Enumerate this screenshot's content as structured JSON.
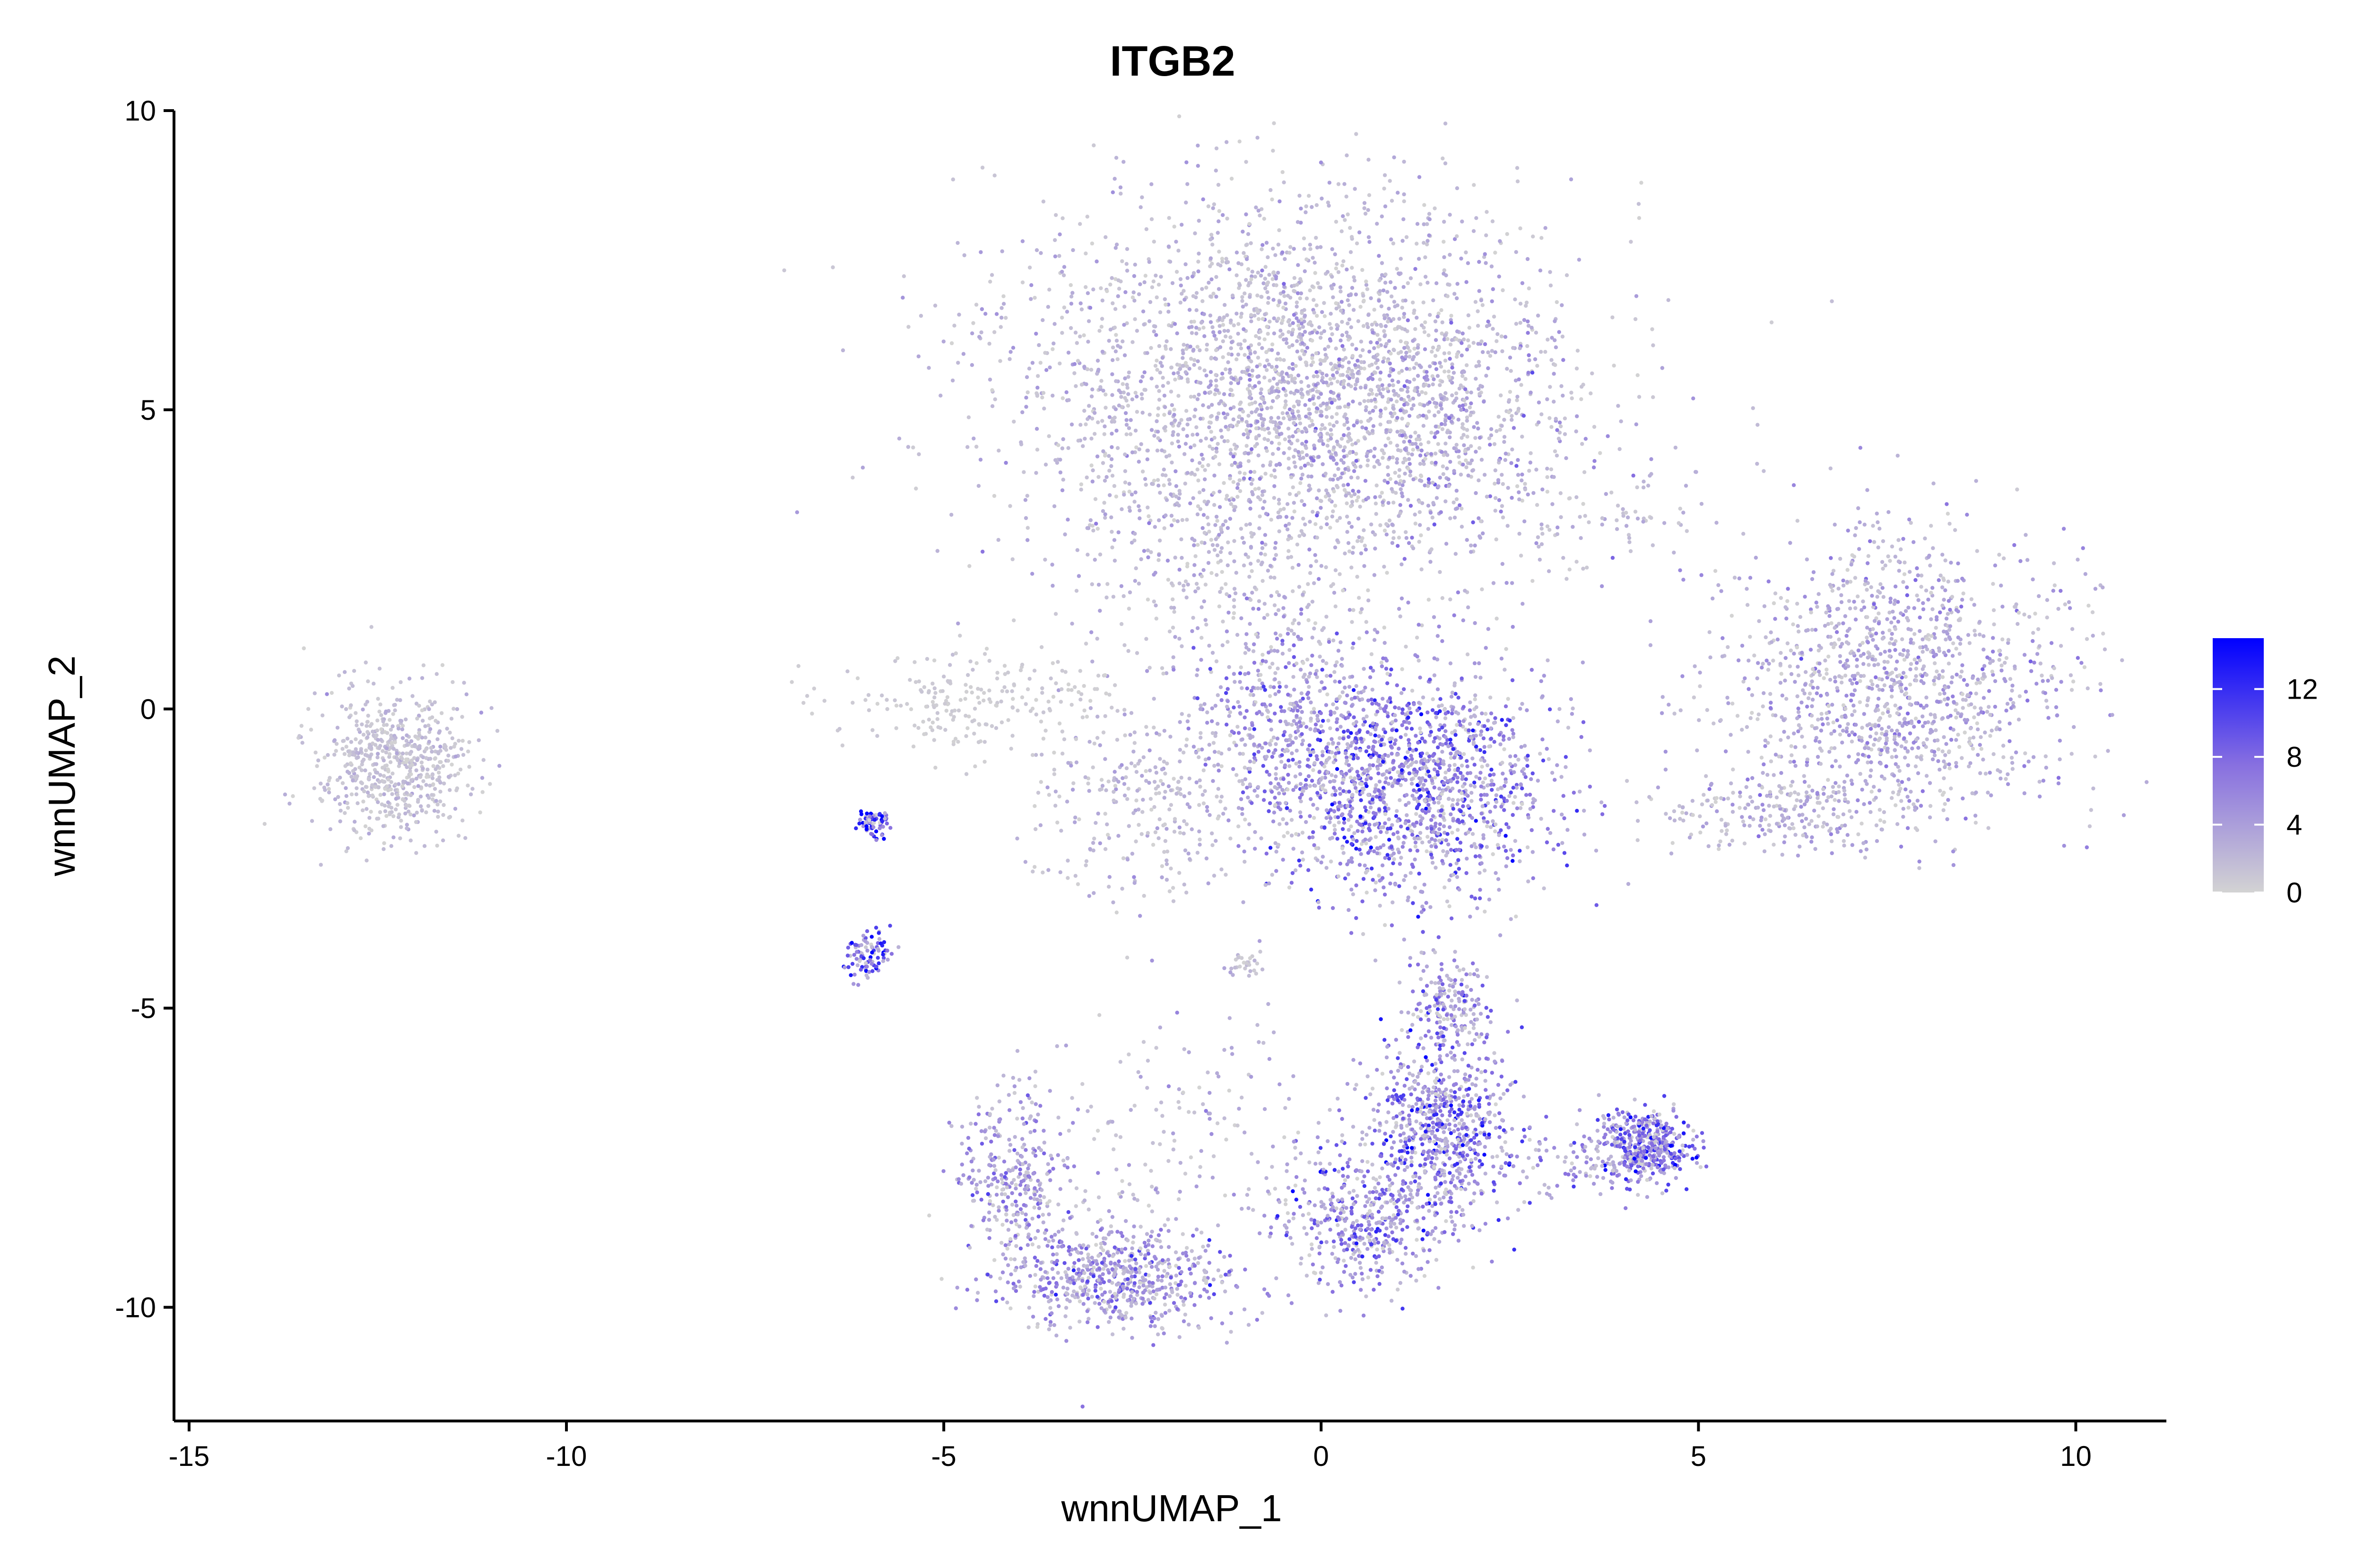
{
  "chart_data": {
    "type": "scatter",
    "title": "ITGB2",
    "xlabel": "wnnUMAP_1",
    "ylabel": "wnnUMAP_2",
    "xlim": [
      -15.2,
      11.2
    ],
    "ylim": [
      -11.9,
      10
    ],
    "x_ticks": [
      -15,
      -10,
      -5,
      0,
      5,
      10
    ],
    "y_ticks": [
      -10,
      -5,
      0,
      5,
      10
    ],
    "x_tick_labels": [
      "-15",
      "-10",
      "-5",
      "0",
      "5",
      "10"
    ],
    "y_tick_labels": [
      "-10",
      "-5",
      "0",
      "5",
      "10"
    ],
    "grid": false,
    "color_scale": {
      "low_color": "#d3d3d3",
      "high_color": "#0000ff",
      "min": 0,
      "max": 15,
      "ticks": [
        0,
        4,
        8,
        12
      ],
      "tick_labels": [
        "0",
        "4",
        "8",
        "12"
      ],
      "legend_position": "right"
    },
    "clusters": [
      {
        "cx": -0.5,
        "cy": 5.6,
        "sx": 1.9,
        "sy": 1.5,
        "n": 2400,
        "expr": 2.4
      },
      {
        "cx": 1.0,
        "cy": 4.6,
        "sx": 1.2,
        "sy": 1.0,
        "n": 600,
        "expr": 3.8
      },
      {
        "cx": -1.0,
        "cy": 2.2,
        "sx": 1.3,
        "sy": 1.1,
        "n": 400,
        "expr": 2.6
      },
      {
        "cx": 1.2,
        "cy": -1.2,
        "sx": 0.9,
        "sy": 1.0,
        "n": 1500,
        "expr": 6.5
      },
      {
        "cx": -0.6,
        "cy": -0.3,
        "sx": 0.6,
        "sy": 0.8,
        "n": 350,
        "expr": 4.8
      },
      {
        "cx": -2.3,
        "cy": -1.5,
        "sx": 0.8,
        "sy": 0.8,
        "n": 300,
        "expr": 2.2
      },
      {
        "cx": -4.5,
        "cy": 0.1,
        "sx": 1.0,
        "sy": 0.4,
        "n": 220,
        "expr": 0.6
      },
      {
        "cx": 7.6,
        "cy": 0.4,
        "sx": 1.1,
        "sy": 1.2,
        "n": 1300,
        "expr": 3.4
      },
      {
        "cx": 6.0,
        "cy": -1.7,
        "sx": 0.9,
        "sy": 0.3,
        "n": 220,
        "expr": 2.6
      },
      {
        "cx": -12.3,
        "cy": -0.9,
        "sx": 0.5,
        "sy": 0.6,
        "n": 650,
        "expr": 1.6
      },
      {
        "cx": -5.95,
        "cy": -1.9,
        "sx": 0.1,
        "sy": 0.12,
        "n": 70,
        "expr": 10.5
      },
      {
        "cx": -6.0,
        "cy": -4.1,
        "sx": 0.15,
        "sy": 0.2,
        "n": 90,
        "expr": 8.5
      },
      {
        "cx": -2.7,
        "cy": -9.5,
        "sx": 0.8,
        "sy": 0.45,
        "n": 650,
        "expr": 5.2
      },
      {
        "cx": -4.1,
        "cy": -7.8,
        "sx": 0.35,
        "sy": 0.7,
        "n": 300,
        "expr": 4.6
      },
      {
        "cx": 1.6,
        "cy": -7.0,
        "sx": 0.45,
        "sy": 0.8,
        "n": 750,
        "expr": 6.6
      },
      {
        "cx": 0.5,
        "cy": -8.6,
        "sx": 0.55,
        "sy": 0.55,
        "n": 420,
        "expr": 6.0
      },
      {
        "cx": 1.7,
        "cy": -4.9,
        "sx": 0.25,
        "sy": 0.35,
        "n": 160,
        "expr": 5.5
      },
      {
        "cx": 4.3,
        "cy": -7.3,
        "sx": 0.3,
        "sy": 0.3,
        "n": 450,
        "expr": 7.2
      },
      {
        "cx": 3.3,
        "cy": -7.6,
        "sx": 0.5,
        "sy": 0.3,
        "n": 90,
        "expr": 4.6
      },
      {
        "cx": -1.0,
        "cy": -4.3,
        "sx": 0.1,
        "sy": 0.1,
        "n": 30,
        "expr": 1.5
      },
      {
        "cx": 3.9,
        "cy": 3.2,
        "sx": 0.7,
        "sy": 0.4,
        "n": 70,
        "expr": 2.0
      },
      {
        "cx": -1.8,
        "cy": -7.0,
        "sx": 1.2,
        "sy": 1.0,
        "n": 180,
        "expr": 2.6
      }
    ]
  }
}
